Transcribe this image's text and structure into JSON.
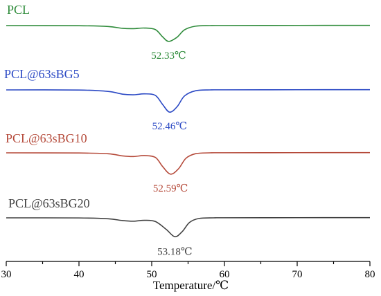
{
  "chart_data": {
    "type": "line",
    "title": "",
    "xlabel": "Temperature/℃",
    "ylabel": "",
    "xlim": [
      30,
      80
    ],
    "xticks": [
      "30",
      "40",
      "50",
      "60",
      "70",
      "80"
    ],
    "grid": false,
    "legend": "none",
    "series": [
      {
        "name": "PCL",
        "color": "#2e8b3a",
        "peak_label": "52.33℃",
        "x": [
          30,
          40,
          44,
          46,
          47.5,
          49,
          50.5,
          51.5,
          52.33,
          53.5,
          54.5,
          56,
          58,
          60,
          70,
          80
        ],
        "offset": [
          0,
          -0.004,
          -0.03,
          -0.09,
          -0.1,
          -0.08,
          -0.13,
          -0.37,
          -0.52,
          -0.38,
          -0.14,
          -0.02,
          0,
          0.003,
          0.006,
          0.008
        ]
      },
      {
        "name": "PCL@63sBG5",
        "color": "#2a48c4",
        "peak_label": "52.46℃",
        "x": [
          30,
          40,
          44,
          46,
          47.5,
          49,
          50.5,
          51.5,
          52.46,
          53.5,
          54.5,
          56,
          58,
          60,
          70,
          80
        ],
        "offset": [
          0,
          -0.004,
          -0.05,
          -0.14,
          -0.16,
          -0.13,
          -0.18,
          -0.48,
          -0.73,
          -0.55,
          -0.2,
          -0.03,
          0,
          0.003,
          0.006,
          0.008
        ]
      },
      {
        "name": "PCL@63sBG10",
        "color": "#b54a3a",
        "peak_label": "52.59℃",
        "x": [
          30,
          40,
          44,
          46,
          47.5,
          49,
          50.5,
          51.5,
          52.59,
          53.7,
          54.7,
          56,
          58,
          60,
          70,
          80
        ],
        "offset": [
          0,
          -0.005,
          -0.03,
          -0.1,
          -0.12,
          -0.09,
          -0.15,
          -0.45,
          -0.7,
          -0.52,
          -0.18,
          -0.03,
          0,
          0.003,
          0.006,
          0.008
        ]
      },
      {
        "name": "PCL@63sBG20",
        "color": "#404040",
        "peak_label": "53.18℃",
        "x": [
          30,
          40,
          44,
          46,
          47.5,
          49,
          50.5,
          52,
          53.18,
          54.2,
          55.2,
          56.5,
          58.5,
          60,
          70,
          80
        ],
        "offset": [
          0,
          -0.003,
          -0.03,
          -0.09,
          -0.11,
          -0.08,
          -0.12,
          -0.38,
          -0.62,
          -0.45,
          -0.15,
          -0.02,
          0,
          0.003,
          0.006,
          0.008
        ]
      }
    ]
  }
}
